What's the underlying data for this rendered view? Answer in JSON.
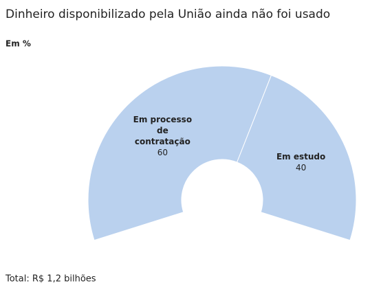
{
  "chart_data": {
    "type": "donut",
    "title": "Dinheiro disponibilizado pela União ainda não foi usado",
    "subtitle": "Em %",
    "categories": [
      "Em processo de contratação",
      "Em estudo"
    ],
    "values": [
      60,
      40
    ],
    "color": "#bad1ee",
    "footer": "Total: R$ 1,2 bilhões"
  }
}
